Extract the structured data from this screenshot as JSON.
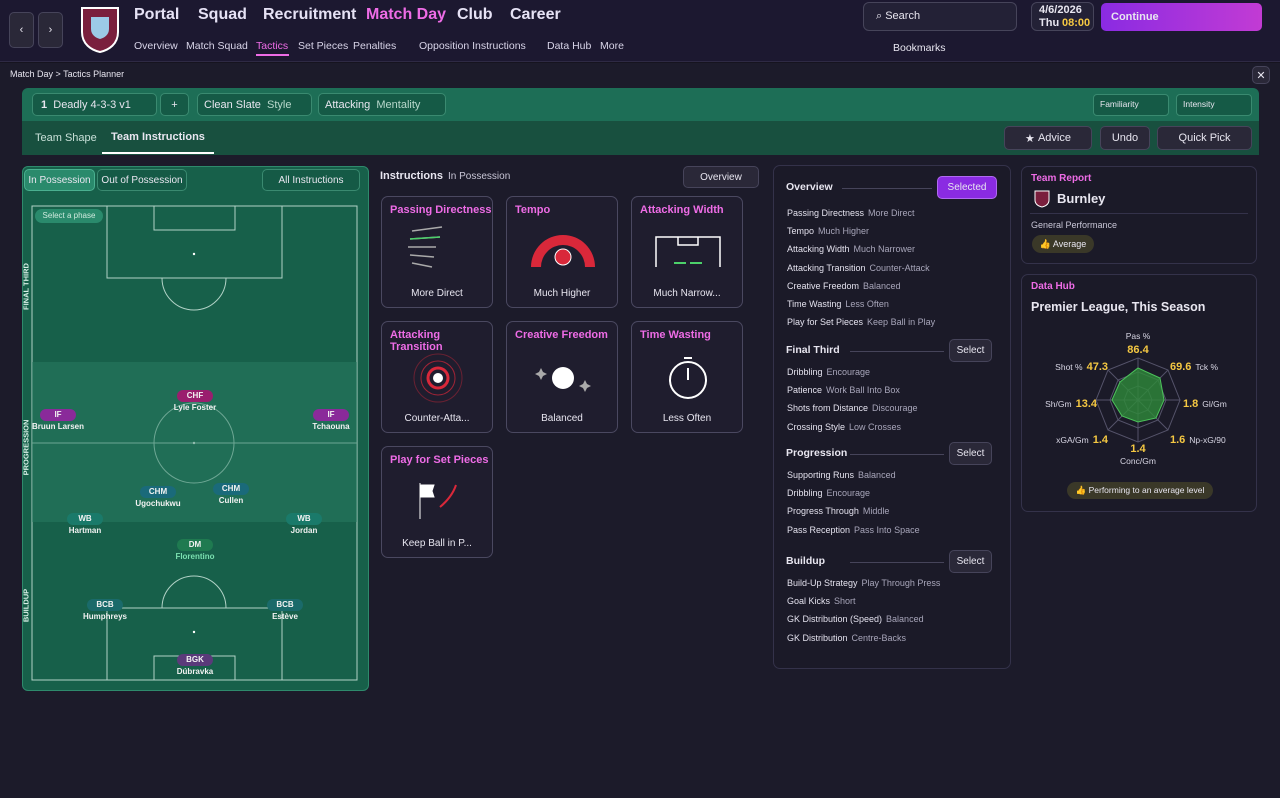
{
  "nav": {
    "main": [
      "Portal",
      "Squad",
      "Recruitment",
      "Match Day",
      "Club",
      "Career"
    ],
    "sub": [
      "Overview",
      "Match Squad",
      "Tactics",
      "Set Pieces",
      "Penalties",
      "Opposition Instructions",
      "Data Hub",
      "More"
    ]
  },
  "top": {
    "search": "Search",
    "date": "4/6/2026",
    "day": "Thu",
    "time": "08:00",
    "continue": "Continue",
    "bookmarks": "Bookmarks"
  },
  "breadcrumb": [
    "Match Day",
    "Tactics Planner"
  ],
  "toolbar": {
    "tactic_number": "1",
    "tactic": "Deadly 4-3-3 v1",
    "add": "+",
    "style_value": "Clean Slate",
    "style_label": "Style",
    "mentality_value": "Attacking",
    "mentality_label": "Mentality",
    "familiarity": "Familiarity",
    "intensity": "Intensity"
  },
  "tabs": [
    "Team Shape",
    "Team Instructions"
  ],
  "actions": {
    "advice": "Advice",
    "undo": "Undo",
    "quick_pick": "Quick Pick"
  },
  "pitch": {
    "tabs": [
      "In Possession",
      "Out of Possession"
    ],
    "all": "All Instructions",
    "select_phase": "Select a phase",
    "phases": [
      "FINAL THIRD",
      "PROGRESSION",
      "BUILDUP"
    ],
    "players": [
      {
        "role": "CHF",
        "name": "Lyle Foster"
      },
      {
        "role": "IF",
        "name": "Bruun Larsen"
      },
      {
        "role": "IF",
        "name": "Tchaouna"
      },
      {
        "role": "CHM",
        "name": "Ugochukwu"
      },
      {
        "role": "CHM",
        "name": "Cullen"
      },
      {
        "role": "WB",
        "name": "Hartman"
      },
      {
        "role": "WB",
        "name": "Jordan"
      },
      {
        "role": "DM",
        "name": "Florentino"
      },
      {
        "role": "BCB",
        "name": "Humphreys"
      },
      {
        "role": "BCB",
        "name": "Estève"
      },
      {
        "role": "BGK",
        "name": "Dúbravka"
      }
    ]
  },
  "instructions": {
    "title": "Instructions",
    "subtitle": "In Possession",
    "view": "Overview",
    "tiles": [
      {
        "title": "Passing Directness",
        "value": "More Direct"
      },
      {
        "title": "Tempo",
        "value": "Much Higher"
      },
      {
        "title": "Attacking Width",
        "value": "Much Narrow..."
      },
      {
        "title": "Attacking Transition",
        "value": "Counter-Atta..."
      },
      {
        "title": "Creative Freedom",
        "value": "Balanced"
      },
      {
        "title": "Time Wasting",
        "value": "Less Often"
      },
      {
        "title": "Play for Set Pieces",
        "value": "Keep Ball in P..."
      }
    ]
  },
  "overview": {
    "sections": [
      {
        "title": "Overview",
        "button": "Selected",
        "items": [
          {
            "label": "Passing Directness",
            "value": "More Direct"
          },
          {
            "label": "Tempo",
            "value": "Much Higher"
          },
          {
            "label": "Attacking Width",
            "value": "Much Narrower"
          },
          {
            "label": "Attacking Transition",
            "value": "Counter-Attack"
          },
          {
            "label": "Creative Freedom",
            "value": "Balanced"
          },
          {
            "label": "Time Wasting",
            "value": "Less Often"
          },
          {
            "label": "Play for Set Pieces",
            "value": "Keep Ball in Play"
          }
        ]
      },
      {
        "title": "Final Third",
        "button": "Select",
        "items": [
          {
            "label": "Dribbling",
            "value": "Encourage"
          },
          {
            "label": "Patience",
            "value": "Work Ball Into Box"
          },
          {
            "label": "Shots from Distance",
            "value": "Discourage"
          },
          {
            "label": "Crossing Style",
            "value": "Low Crosses"
          }
        ]
      },
      {
        "title": "Progression",
        "button": "Select",
        "items": [
          {
            "label": "Supporting Runs",
            "value": "Balanced"
          },
          {
            "label": "Dribbling",
            "value": "Encourage"
          },
          {
            "label": "Progress Through",
            "value": "Middle"
          },
          {
            "label": "Pass Reception",
            "value": "Pass Into Space"
          }
        ]
      },
      {
        "title": "Buildup",
        "button": "Select",
        "items": [
          {
            "label": "Build-Up Strategy",
            "value": "Play Through Press"
          },
          {
            "label": "Goal Kicks",
            "value": "Short"
          },
          {
            "label": "GK Distribution (Speed)",
            "value": "Balanced"
          },
          {
            "label": "GK Distribution",
            "value": "Centre-Backs"
          }
        ]
      }
    ]
  },
  "team_report": {
    "title": "Team Report",
    "team": "Burnley",
    "subtitle": "General Performance",
    "rating": "Average"
  },
  "data_hub": {
    "title": "Data Hub",
    "subtitle": "Premier League, This Season",
    "stats": [
      {
        "label": "Pas %",
        "value": 86.4
      },
      {
        "label": "Tck %",
        "value": 69.6
      },
      {
        "label": "Gl/Gm",
        "value": 1.8
      },
      {
        "label": "Np-xG/90",
        "value": 1.6
      },
      {
        "label": "Conc/Gm",
        "value": 1.4
      },
      {
        "label": "xGA/Gm",
        "value": 1.4
      },
      {
        "label": "Sh/Gm",
        "value": 13.4
      },
      {
        "label": "Shot %",
        "value": 47.3
      }
    ],
    "summary": "Performing to an average level"
  }
}
